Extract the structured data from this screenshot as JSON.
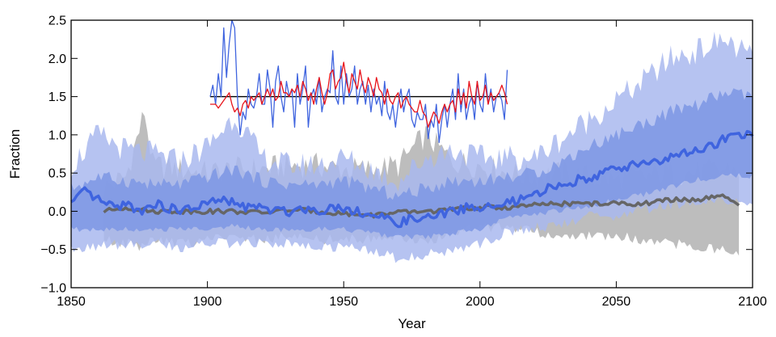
{
  "chart_data": {
    "type": "line",
    "title": "",
    "xlabel": "Year",
    "ylabel": "Fraction",
    "xlim": [
      1850,
      2100
    ],
    "ylim": [
      -1.0,
      2.5
    ],
    "x_ticks": [
      1850,
      1900,
      1950,
      2000,
      2050,
      2100
    ],
    "x_tick_labels": [
      "1850",
      "1900",
      "1950",
      "2000",
      "2050",
      "2100"
    ],
    "y_ticks": [
      -1.0,
      -0.5,
      0.0,
      0.5,
      1.0,
      1.5,
      2.0,
      2.5
    ],
    "y_tick_labels": [
      "−1.0",
      "−0.5",
      "0.0",
      "0.5",
      "1.0",
      "1.5",
      "2.0",
      "2.5"
    ],
    "grid": false,
    "legend": "none",
    "colors": {
      "gray_band": "#bdbdbd",
      "gray_line": "#666666",
      "blue_band_outer": "#a9b9ef",
      "blue_band_inner": "#7d96e4",
      "blue_line": "#3f64df",
      "inset_blue": "#3f64df",
      "inset_red": "#e8141b",
      "inset_ref": "#000000"
    },
    "series": [
      {
        "role": "gray-range",
        "x": [
          1862,
          1870,
          1877,
          1880,
          1890,
          1900,
          1910,
          1920,
          1930,
          1940,
          1950,
          1960,
          1970,
          1980,
          1990,
          2000,
          2010,
          2020,
          2030,
          2040,
          2050,
          2060,
          2070,
          2080,
          2090,
          2095
        ],
        "lower": [
          -0.3,
          -0.35,
          -0.4,
          -0.3,
          -0.35,
          -0.3,
          -0.25,
          -0.3,
          -0.25,
          -0.3,
          -0.3,
          -0.3,
          -0.25,
          -0.35,
          -0.2,
          -0.15,
          -0.15,
          -0.2,
          -0.25,
          -0.25,
          -0.25,
          -0.3,
          -0.35,
          -0.4,
          -0.45,
          -0.5
        ],
        "upper": [
          0.3,
          0.45,
          1.3,
          0.6,
          0.55,
          0.5,
          0.55,
          0.55,
          0.6,
          0.6,
          0.55,
          0.55,
          0.6,
          1.0,
          0.65,
          0.6,
          0.5,
          0.45,
          0.5,
          0.45,
          0.4,
          0.45,
          0.5,
          0.5,
          0.55,
          0.55
        ]
      },
      {
        "role": "gray-mean",
        "x": [
          1862,
          1870,
          1880,
          1890,
          1900,
          1910,
          1920,
          1930,
          1940,
          1950,
          1960,
          1970,
          1980,
          1990,
          2000,
          2010,
          2020,
          2030,
          2040,
          2050,
          2060,
          2070,
          2080,
          2090,
          2095
        ],
        "values": [
          0.0,
          0.05,
          0.0,
          0.0,
          0.0,
          0.0,
          -0.02,
          0.02,
          0.0,
          -0.03,
          -0.05,
          -0.02,
          0.0,
          0.02,
          0.05,
          0.05,
          0.08,
          0.1,
          0.1,
          0.1,
          0.1,
          0.15,
          0.15,
          0.2,
          0.05
        ]
      },
      {
        "role": "blue-range-outer",
        "x": [
          1850,
          1860,
          1870,
          1880,
          1890,
          1900,
          1910,
          1920,
          1930,
          1940,
          1950,
          1960,
          1970,
          1980,
          1990,
          2000,
          2010,
          2020,
          2030,
          2040,
          2050,
          2060,
          2070,
          2080,
          2090,
          2100
        ],
        "lower": [
          -0.4,
          -0.4,
          -0.35,
          -0.35,
          -0.4,
          -0.35,
          -0.35,
          -0.35,
          -0.35,
          -0.4,
          -0.4,
          -0.45,
          -0.55,
          -0.5,
          -0.45,
          -0.35,
          -0.2,
          -0.15,
          -0.1,
          0.0,
          0.0,
          0.1,
          0.15,
          0.2,
          0.2,
          0.2
        ],
        "upper": [
          0.6,
          1.0,
          0.8,
          0.75,
          0.65,
          0.85,
          1.25,
          0.7,
          0.6,
          0.6,
          0.7,
          0.55,
          0.4,
          0.7,
          0.8,
          0.7,
          0.7,
          0.7,
          0.95,
          1.2,
          1.45,
          1.7,
          2.0,
          2.1,
          2.25,
          2.0
        ]
      },
      {
        "role": "blue-range-inner",
        "x": [
          1850,
          1860,
          1870,
          1880,
          1890,
          1900,
          1910,
          1920,
          1930,
          1940,
          1950,
          1960,
          1970,
          1980,
          1990,
          2000,
          2010,
          2020,
          2030,
          2040,
          2050,
          2060,
          2070,
          2080,
          2090,
          2100
        ],
        "lower": [
          -0.2,
          -0.2,
          -0.2,
          -0.2,
          -0.2,
          -0.2,
          -0.15,
          -0.2,
          -0.2,
          -0.2,
          -0.2,
          -0.25,
          -0.3,
          -0.3,
          -0.25,
          -0.2,
          -0.05,
          0.0,
          0.05,
          0.1,
          0.2,
          0.25,
          0.35,
          0.45,
          0.5,
          0.5
        ],
        "upper": [
          0.3,
          0.45,
          0.4,
          0.35,
          0.35,
          0.45,
          0.55,
          0.4,
          0.35,
          0.35,
          0.4,
          0.3,
          0.2,
          0.3,
          0.4,
          0.4,
          0.45,
          0.5,
          0.65,
          0.85,
          1.0,
          1.15,
          1.3,
          1.4,
          1.55,
          1.5
        ]
      },
      {
        "role": "blue-mean",
        "x": [
          1850,
          1855,
          1860,
          1865,
          1870,
          1875,
          1880,
          1885,
          1890,
          1895,
          1900,
          1905,
          1910,
          1915,
          1920,
          1925,
          1930,
          1935,
          1940,
          1945,
          1950,
          1955,
          1960,
          1965,
          1970,
          1975,
          1980,
          1985,
          1990,
          1995,
          2000,
          2005,
          2010,
          2015,
          2020,
          2025,
          2030,
          2035,
          2040,
          2045,
          2050,
          2055,
          2060,
          2065,
          2070,
          2075,
          2080,
          2085,
          2090,
          2095,
          2100
        ],
        "values": [
          0.1,
          0.25,
          0.15,
          0.05,
          0.1,
          0.0,
          0.1,
          0.05,
          0.0,
          0.05,
          0.1,
          0.15,
          0.1,
          0.05,
          0.05,
          0.0,
          0.0,
          0.05,
          0.0,
          0.05,
          0.05,
          0.0,
          -0.05,
          -0.1,
          -0.15,
          -0.1,
          -0.1,
          -0.05,
          0.0,
          0.05,
          0.05,
          0.05,
          0.1,
          0.15,
          0.2,
          0.3,
          0.35,
          0.4,
          0.45,
          0.5,
          0.55,
          0.6,
          0.65,
          0.65,
          0.7,
          0.75,
          0.8,
          0.85,
          0.95,
          1.0,
          1.0
        ]
      },
      {
        "role": "inset-blue",
        "x": [
          1901,
          1902,
          1903,
          1904,
          1905,
          1906,
          1907,
          1908,
          1909,
          1910,
          1911,
          1912,
          1913,
          1914,
          1915,
          1916,
          1917,
          1918,
          1919,
          1920,
          1921,
          1922,
          1923,
          1924,
          1925,
          1926,
          1927,
          1928,
          1929,
          1930,
          1931,
          1932,
          1933,
          1934,
          1935,
          1936,
          1937,
          1938,
          1939,
          1940,
          1941,
          1942,
          1943,
          1944,
          1945,
          1946,
          1947,
          1948,
          1949,
          1950,
          1951,
          1952,
          1953,
          1954,
          1955,
          1956,
          1957,
          1958,
          1959,
          1960,
          1961,
          1962,
          1963,
          1964,
          1965,
          1966,
          1967,
          1968,
          1969,
          1970,
          1971,
          1972,
          1973,
          1974,
          1975,
          1976,
          1977,
          1978,
          1979,
          1980,
          1981,
          1982,
          1983,
          1984,
          1985,
          1986,
          1987,
          1988,
          1989,
          1990,
          1991,
          1992,
          1993,
          1994,
          1995,
          1996,
          1997,
          1998,
          1999,
          2000,
          2001,
          2002,
          2003,
          2004,
          2005,
          2006,
          2007,
          2008,
          2009,
          2010
        ],
        "values": [
          1.5,
          1.65,
          1.4,
          1.8,
          1.5,
          2.4,
          1.75,
          2.2,
          2.5,
          2.4,
          1.5,
          1.0,
          1.3,
          1.2,
          1.6,
          1.4,
          1.35,
          1.5,
          1.8,
          1.4,
          1.4,
          1.85,
          1.6,
          1.1,
          1.7,
          1.9,
          1.5,
          1.3,
          1.7,
          1.5,
          1.6,
          1.1,
          1.8,
          1.4,
          1.6,
          1.9,
          1.1,
          1.5,
          1.6,
          1.4,
          1.75,
          1.3,
          1.5,
          1.6,
          1.55,
          2.1,
          1.5,
          1.4,
          1.9,
          1.4,
          1.8,
          1.5,
          1.6,
          1.9,
          1.4,
          1.6,
          1.7,
          1.4,
          1.65,
          1.3,
          1.6,
          1.4,
          1.5,
          1.25,
          1.7,
          1.3,
          1.2,
          1.4,
          1.1,
          1.4,
          1.6,
          1.3,
          1.5,
          1.6,
          1.2,
          1.1,
          1.3,
          1.2,
          1.2,
          1.4,
          0.95,
          1.2,
          1.1,
          1.4,
          0.9,
          1.2,
          1.4,
          1.1,
          1.4,
          1.6,
          1.2,
          1.8,
          1.3,
          1.6,
          1.2,
          1.4,
          1.5,
          1.2,
          1.7,
          1.4,
          1.3,
          1.8,
          1.4,
          1.6,
          1.3,
          1.5,
          1.55,
          1.45,
          1.2,
          1.85
        ]
      },
      {
        "role": "inset-red",
        "x": [
          1901,
          1902,
          1903,
          1904,
          1905,
          1906,
          1907,
          1908,
          1909,
          1910,
          1911,
          1912,
          1913,
          1914,
          1915,
          1916,
          1917,
          1918,
          1919,
          1920,
          1921,
          1922,
          1923,
          1924,
          1925,
          1926,
          1927,
          1928,
          1929,
          1930,
          1931,
          1932,
          1933,
          1934,
          1935,
          1936,
          1937,
          1938,
          1939,
          1940,
          1941,
          1942,
          1943,
          1944,
          1945,
          1946,
          1947,
          1948,
          1949,
          1950,
          1951,
          1952,
          1953,
          1954,
          1955,
          1956,
          1957,
          1958,
          1959,
          1960,
          1961,
          1962,
          1963,
          1964,
          1965,
          1966,
          1967,
          1968,
          1969,
          1970,
          1971,
          1972,
          1973,
          1974,
          1975,
          1976,
          1977,
          1978,
          1979,
          1980,
          1981,
          1982,
          1983,
          1984,
          1985,
          1986,
          1987,
          1988,
          1989,
          1990,
          1991,
          1992,
          1993,
          1994,
          1995,
          1996,
          1997,
          1998,
          1999,
          2000,
          2001,
          2002,
          2003,
          2004,
          2005,
          2006,
          2007,
          2008,
          2009,
          2010
        ],
        "values": [
          1.4,
          1.4,
          1.4,
          1.35,
          1.4,
          1.45,
          1.5,
          1.55,
          1.4,
          1.3,
          1.35,
          1.25,
          1.4,
          1.45,
          1.35,
          1.5,
          1.45,
          1.5,
          1.55,
          1.4,
          1.5,
          1.6,
          1.5,
          1.6,
          1.45,
          1.5,
          1.7,
          1.55,
          1.55,
          1.5,
          1.6,
          1.55,
          1.65,
          1.5,
          1.7,
          1.6,
          1.45,
          1.55,
          1.4,
          1.6,
          1.75,
          1.55,
          1.4,
          1.55,
          1.8,
          1.85,
          1.6,
          1.7,
          1.75,
          1.95,
          1.7,
          1.55,
          1.8,
          1.7,
          1.6,
          1.85,
          1.65,
          1.55,
          1.75,
          1.65,
          1.5,
          1.75,
          1.6,
          1.55,
          1.4,
          1.6,
          1.45,
          1.4,
          1.5,
          1.55,
          1.35,
          1.45,
          1.5,
          1.4,
          1.35,
          1.3,
          1.3,
          1.45,
          1.3,
          1.25,
          1.1,
          1.2,
          1.3,
          1.25,
          1.15,
          1.3,
          1.4,
          1.3,
          1.4,
          1.45,
          1.3,
          1.6,
          1.4,
          1.55,
          1.35,
          1.7,
          1.5,
          1.4,
          1.7,
          1.45,
          1.5,
          1.65,
          1.4,
          1.55,
          1.45,
          1.5,
          1.55,
          1.65,
          1.55,
          1.4
        ]
      },
      {
        "role": "inset-reference",
        "x": [
          1901,
          2010
        ],
        "values": [
          1.5,
          1.5
        ]
      }
    ]
  }
}
